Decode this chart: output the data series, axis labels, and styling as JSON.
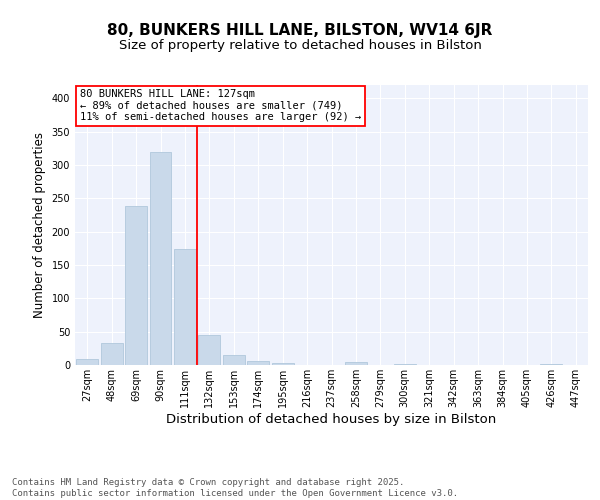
{
  "title1": "80, BUNKERS HILL LANE, BILSTON, WV14 6JR",
  "title2": "Size of property relative to detached houses in Bilston",
  "xlabel": "Distribution of detached houses by size in Bilston",
  "ylabel": "Number of detached properties",
  "categories": [
    "27sqm",
    "48sqm",
    "69sqm",
    "90sqm",
    "111sqm",
    "132sqm",
    "153sqm",
    "174sqm",
    "195sqm",
    "216sqm",
    "237sqm",
    "258sqm",
    "279sqm",
    "300sqm",
    "321sqm",
    "342sqm",
    "363sqm",
    "384sqm",
    "405sqm",
    "426sqm",
    "447sqm"
  ],
  "values": [
    9,
    33,
    238,
    319,
    174,
    45,
    15,
    6,
    3,
    0,
    0,
    4,
    0,
    1,
    0,
    0,
    0,
    0,
    0,
    2,
    0
  ],
  "bar_color": "#c9d9ea",
  "bar_edge_color": "#b0c8dc",
  "vline_x": 4.5,
  "vline_color": "red",
  "annotation_text": "80 BUNKERS HILL LANE: 127sqm\n← 89% of detached houses are smaller (749)\n11% of semi-detached houses are larger (92) →",
  "annotation_box_color": "red",
  "annotation_text_color": "black",
  "ylim": [
    0,
    420
  ],
  "yticks": [
    0,
    50,
    100,
    150,
    200,
    250,
    300,
    350,
    400
  ],
  "background_color": "#eef2fc",
  "grid_color": "#ffffff",
  "footer": "Contains HM Land Registry data © Crown copyright and database right 2025.\nContains public sector information licensed under the Open Government Licence v3.0.",
  "title1_fontsize": 11,
  "title2_fontsize": 9.5,
  "xlabel_fontsize": 9.5,
  "ylabel_fontsize": 8.5,
  "tick_fontsize": 7,
  "footer_fontsize": 6.5,
  "ann_fontsize": 7.5
}
